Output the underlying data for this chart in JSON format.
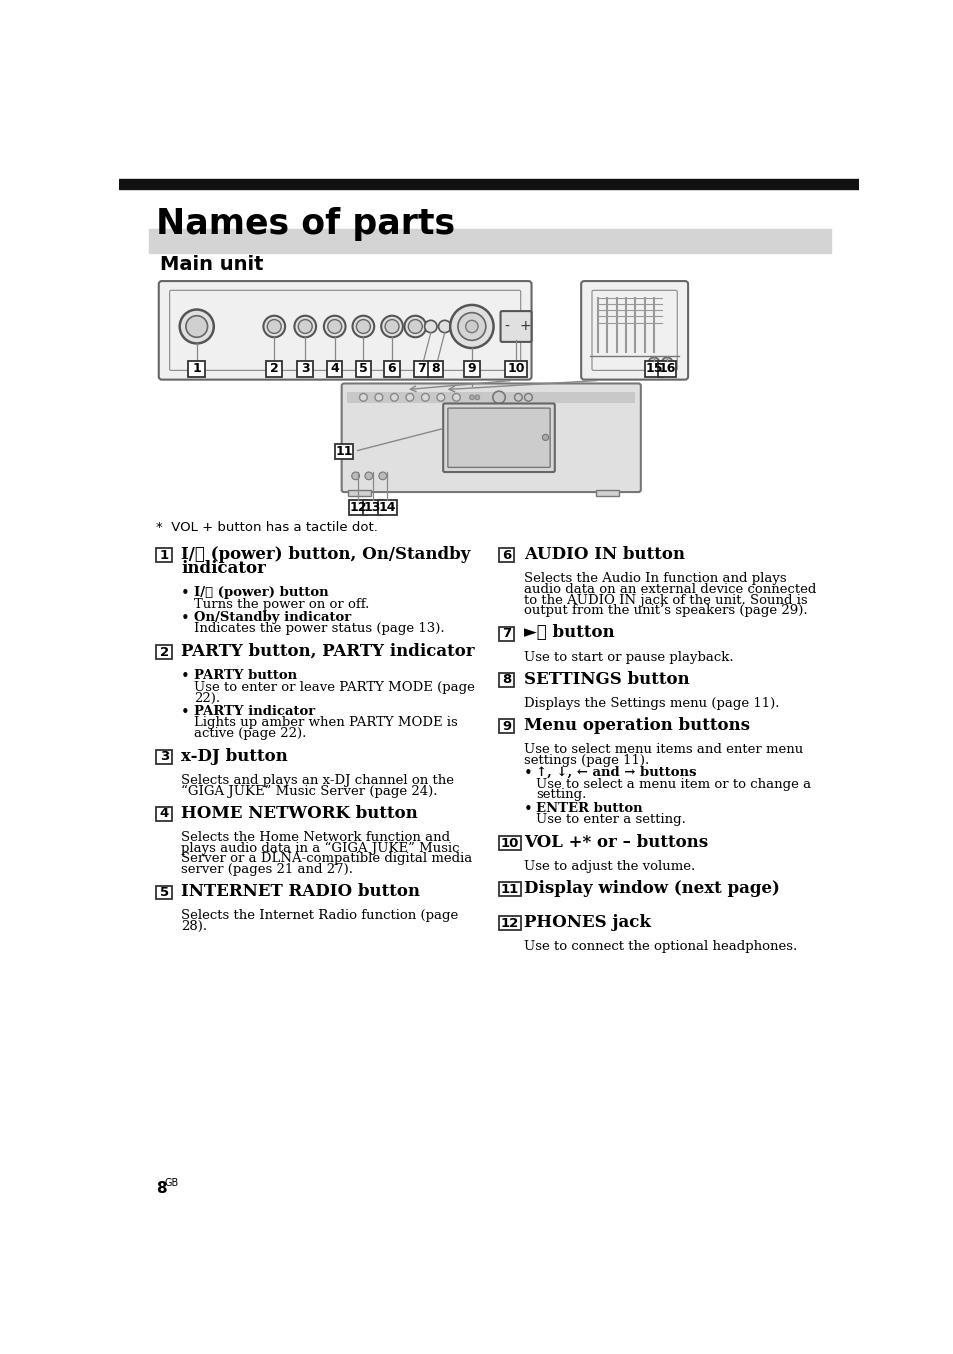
{
  "title": "Names of parts",
  "subtitle": "Main unit",
  "bg_color": "#ffffff",
  "header_bar_color": "#111111",
  "subheader_bg": "#d4d4d4",
  "page_number": "8",
  "page_suffix": "GB",
  "footnote": "*  VOL + button has a tactile dot.",
  "left_entries": [
    {
      "num": "1",
      "heading": "I/⏻ (power) button, On/Standby\nindicator",
      "body": "",
      "bullets": [
        {
          "label": "I/⏻ (power) button",
          "text": "Turns the power on or off."
        },
        {
          "label": "On/Standby indicator",
          "text": "Indicates the power status (page 13)."
        }
      ]
    },
    {
      "num": "2",
      "heading": "PARTY button, PARTY indicator",
      "body": "",
      "bullets": [
        {
          "label": "PARTY button",
          "text": "Use to enter or leave PARTY MODE (page\n22)."
        },
        {
          "label": "PARTY indicator",
          "text": "Lights up amber when PARTY MODE is\nactive (page 22)."
        }
      ]
    },
    {
      "num": "3",
      "heading": "x-DJ button",
      "body": "Selects and plays an x-DJ channel on the\n“GIGA JUKE” Music Server (page 24).",
      "bullets": []
    },
    {
      "num": "4",
      "heading": "HOME NETWORK button",
      "body": "Selects the Home Network function and\nplays audio data in a “GIGA JUKE” Music\nServer or a DLNA-compatible digital media\nserver (pages 21 and 27).",
      "bullets": []
    },
    {
      "num": "5",
      "heading": "INTERNET RADIO button",
      "body": "Selects the Internet Radio function (page\n28).",
      "bullets": []
    }
  ],
  "right_entries": [
    {
      "num": "6",
      "heading": "AUDIO IN button",
      "body": "Selects the Audio In function and plays\naudio data on an external device connected\nto the AUDIO IN jack of the unit. Sound is\noutput from the unit’s speakers (page 29).",
      "bullets": []
    },
    {
      "num": "7",
      "heading": "►⏸ button",
      "body": "Use to start or pause playback.",
      "bullets": []
    },
    {
      "num": "8",
      "heading": "SETTINGS button",
      "body": "Displays the Settings menu (page 11).",
      "bullets": []
    },
    {
      "num": "9",
      "heading": "Menu operation buttons",
      "body": "Use to select menu items and enter menu\nsettings (page 11).",
      "bullets": [
        {
          "label": "↑, ↓, ← and → buttons",
          "text": "Use to select a menu item or to change a\nsetting."
        },
        {
          "label": "ENTER button",
          "text": "Use to enter a setting."
        }
      ]
    },
    {
      "num": "10",
      "heading": "VOL +* or – buttons",
      "body": "Use to adjust the volume.",
      "bullets": []
    },
    {
      "num": "11",
      "heading": "Display window (next page)",
      "body": "",
      "bullets": []
    },
    {
      "num": "12",
      "heading": "PHONES jack",
      "body": "Use to connect the optional headphones.",
      "bullets": []
    }
  ]
}
